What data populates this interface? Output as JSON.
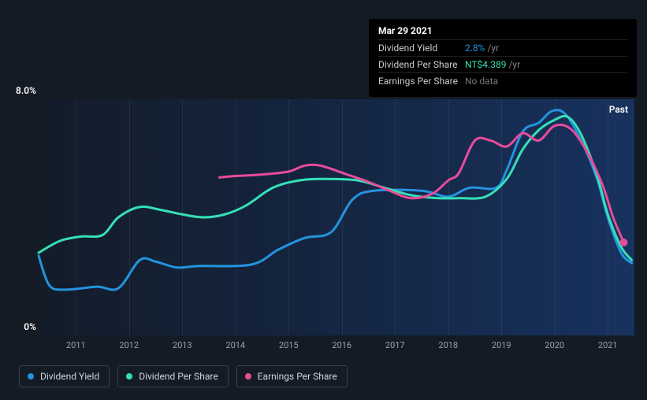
{
  "chart": {
    "type": "line",
    "background_color": "#151b24",
    "plot_gradient": [
      "rgba(12,30,60,0.2)",
      "rgba(25,60,120,0.7)"
    ],
    "ylim": [
      0,
      8
    ],
    "y_ticks": [
      {
        "v": 0,
        "label": "0%"
      },
      {
        "v": 8,
        "label": "8.0%"
      }
    ],
    "x_years": [
      2011,
      2012,
      2013,
      2014,
      2015,
      2016,
      2017,
      2018,
      2019,
      2020,
      2021
    ],
    "x_range": [
      2010.3,
      2021.5
    ],
    "grid_color": "rgba(255,255,255,0.07)",
    "text_color": "#9aa0a6",
    "font_family": "sans-serif",
    "past_label": "Past",
    "series": {
      "dividend_yield": {
        "label": "Dividend Yield",
        "color": "#2394df",
        "stroke_width": 3,
        "data": [
          [
            2010.3,
            2.7
          ],
          [
            2010.5,
            1.7
          ],
          [
            2010.8,
            1.55
          ],
          [
            2011.4,
            1.65
          ],
          [
            2011.8,
            1.6
          ],
          [
            2012.2,
            2.55
          ],
          [
            2012.5,
            2.5
          ],
          [
            2012.9,
            2.3
          ],
          [
            2013.3,
            2.35
          ],
          [
            2014.3,
            2.4
          ],
          [
            2014.8,
            2.9
          ],
          [
            2015.3,
            3.3
          ],
          [
            2015.8,
            3.5
          ],
          [
            2016.2,
            4.6
          ],
          [
            2016.6,
            4.9
          ],
          [
            2017.5,
            4.9
          ],
          [
            2018.0,
            4.7
          ],
          [
            2018.4,
            5.0
          ],
          [
            2018.9,
            5.0
          ],
          [
            2019.1,
            5.6
          ],
          [
            2019.4,
            6.9
          ],
          [
            2019.7,
            7.2
          ],
          [
            2019.95,
            7.6
          ],
          [
            2020.2,
            7.5
          ],
          [
            2020.5,
            6.6
          ],
          [
            2020.8,
            5.3
          ],
          [
            2021.0,
            4.0
          ],
          [
            2021.25,
            2.8
          ],
          [
            2021.45,
            2.45
          ]
        ]
      },
      "dividend_per_share": {
        "label": "Dividend Per Share",
        "color": "#35e0b6",
        "stroke_width": 3,
        "data": [
          [
            2010.3,
            2.8
          ],
          [
            2010.7,
            3.2
          ],
          [
            2011.1,
            3.35
          ],
          [
            2011.5,
            3.4
          ],
          [
            2011.8,
            4.0
          ],
          [
            2012.2,
            4.35
          ],
          [
            2012.6,
            4.25
          ],
          [
            2013.0,
            4.1
          ],
          [
            2013.4,
            4.0
          ],
          [
            2013.8,
            4.1
          ],
          [
            2014.2,
            4.4
          ],
          [
            2014.7,
            5.0
          ],
          [
            2015.2,
            5.25
          ],
          [
            2015.7,
            5.3
          ],
          [
            2016.3,
            5.25
          ],
          [
            2016.8,
            5.0
          ],
          [
            2017.3,
            4.75
          ],
          [
            2017.8,
            4.65
          ],
          [
            2018.2,
            4.65
          ],
          [
            2018.7,
            4.7
          ],
          [
            2019.1,
            5.3
          ],
          [
            2019.4,
            6.3
          ],
          [
            2019.7,
            6.95
          ],
          [
            2020.0,
            7.3
          ],
          [
            2020.25,
            7.4
          ],
          [
            2020.5,
            6.8
          ],
          [
            2020.8,
            5.4
          ],
          [
            2021.0,
            4.1
          ],
          [
            2021.25,
            3.0
          ],
          [
            2021.45,
            2.55
          ]
        ]
      },
      "earnings_per_share": {
        "label": "Earnings Per Share",
        "color": "#e84b9a",
        "stroke_width": 3,
        "data": [
          [
            2013.7,
            5.35
          ],
          [
            2014.0,
            5.4
          ],
          [
            2014.5,
            5.45
          ],
          [
            2015.0,
            5.55
          ],
          [
            2015.3,
            5.75
          ],
          [
            2015.6,
            5.75
          ],
          [
            2016.1,
            5.45
          ],
          [
            2016.5,
            5.2
          ],
          [
            2016.9,
            4.9
          ],
          [
            2017.3,
            4.65
          ],
          [
            2017.7,
            4.8
          ],
          [
            2018.0,
            5.25
          ],
          [
            2018.2,
            5.5
          ],
          [
            2018.5,
            6.6
          ],
          [
            2018.8,
            6.6
          ],
          [
            2019.1,
            6.4
          ],
          [
            2019.4,
            6.85
          ],
          [
            2019.7,
            6.6
          ],
          [
            2020.0,
            7.1
          ],
          [
            2020.3,
            7.0
          ],
          [
            2020.6,
            6.25
          ],
          [
            2020.9,
            5.1
          ],
          [
            2021.1,
            4.0
          ],
          [
            2021.3,
            3.15
          ]
        ],
        "end_marker": {
          "x": 2021.3,
          "y": 3.15,
          "size": 5
        }
      }
    }
  },
  "tooltip": {
    "date": "Mar 29 2021",
    "rows": [
      {
        "label": "Dividend Yield",
        "value": "2.8%",
        "unit": "/yr",
        "color": "#2394df"
      },
      {
        "label": "Dividend Per Share",
        "value": "NT$4.389",
        "unit": "/yr",
        "color": "#35e0b6"
      },
      {
        "label": "Earnings Per Share",
        "value": "No data",
        "unit": "",
        "color": "#777"
      }
    ]
  },
  "legend": [
    {
      "label": "Dividend Yield",
      "color": "#2394df"
    },
    {
      "label": "Dividend Per Share",
      "color": "#35e0b6"
    },
    {
      "label": "Earnings Per Share",
      "color": "#e84b9a"
    }
  ]
}
